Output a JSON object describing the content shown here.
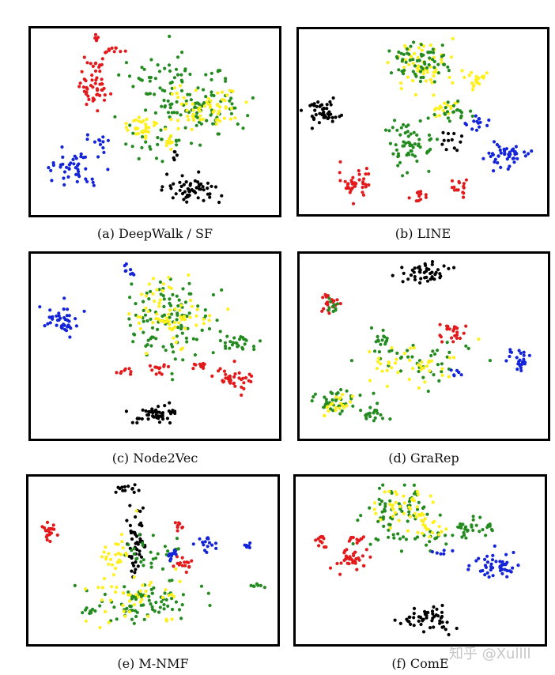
{
  "figure": {
    "type": "scatter-grid",
    "colors": {
      "black": "#000000",
      "red": "#e31a1c",
      "green": "#238b1f",
      "yellow": "#ffef1a",
      "blue": "#1424d8"
    }
  },
  "watermark": "知乎 @Xullll",
  "chart_data": [
    {
      "type": "scatter",
      "caption": "(a) DeepWalk / SF",
      "clusters": [
        {
          "color": "red",
          "cx": 0.25,
          "cy": 0.32,
          "rx": 0.07,
          "ry": 0.09,
          "n": 40
        },
        {
          "color": "red",
          "cx": 0.26,
          "cy": 0.2,
          "rx": 0.04,
          "ry": 0.03,
          "n": 12
        },
        {
          "color": "red",
          "cx": 0.33,
          "cy": 0.12,
          "rx": 0.04,
          "ry": 0.02,
          "n": 10
        },
        {
          "color": "red",
          "cx": 0.26,
          "cy": 0.05,
          "rx": 0.02,
          "ry": 0.02,
          "n": 5
        },
        {
          "color": "green",
          "cx": 0.7,
          "cy": 0.42,
          "rx": 0.18,
          "ry": 0.13,
          "n": 90
        },
        {
          "color": "green",
          "cx": 0.5,
          "cy": 0.25,
          "rx": 0.12,
          "ry": 0.12,
          "n": 40
        },
        {
          "color": "green",
          "cx": 0.5,
          "cy": 0.6,
          "rx": 0.15,
          "ry": 0.08,
          "n": 25
        },
        {
          "color": "yellow",
          "cx": 0.7,
          "cy": 0.42,
          "rx": 0.14,
          "ry": 0.1,
          "n": 60
        },
        {
          "color": "yellow",
          "cx": 0.46,
          "cy": 0.53,
          "rx": 0.08,
          "ry": 0.06,
          "n": 30
        },
        {
          "color": "yellow",
          "cx": 0.56,
          "cy": 0.62,
          "rx": 0.04,
          "ry": 0.04,
          "n": 10
        },
        {
          "color": "blue",
          "cx": 0.18,
          "cy": 0.75,
          "rx": 0.11,
          "ry": 0.08,
          "n": 45
        },
        {
          "color": "blue",
          "cx": 0.28,
          "cy": 0.6,
          "rx": 0.04,
          "ry": 0.04,
          "n": 10
        },
        {
          "color": "black",
          "cx": 0.65,
          "cy": 0.87,
          "rx": 0.1,
          "ry": 0.07,
          "n": 55
        },
        {
          "color": "black",
          "cx": 0.58,
          "cy": 0.68,
          "rx": 0.03,
          "ry": 0.02,
          "n": 5
        }
      ]
    },
    {
      "type": "scatter",
      "caption": "(b) LINE",
      "clusters": [
        {
          "color": "black",
          "cx": 0.1,
          "cy": 0.45,
          "rx": 0.07,
          "ry": 0.08,
          "n": 45
        },
        {
          "color": "yellow",
          "cx": 0.5,
          "cy": 0.18,
          "rx": 0.12,
          "ry": 0.12,
          "n": 60
        },
        {
          "color": "green",
          "cx": 0.5,
          "cy": 0.17,
          "rx": 0.1,
          "ry": 0.1,
          "n": 60
        },
        {
          "color": "yellow",
          "cx": 0.73,
          "cy": 0.28,
          "rx": 0.05,
          "ry": 0.05,
          "n": 20
        },
        {
          "color": "yellow",
          "cx": 0.58,
          "cy": 0.42,
          "rx": 0.05,
          "ry": 0.05,
          "n": 15
        },
        {
          "color": "green",
          "cx": 0.45,
          "cy": 0.63,
          "rx": 0.08,
          "ry": 0.13,
          "n": 60
        },
        {
          "color": "green",
          "cx": 0.62,
          "cy": 0.45,
          "rx": 0.06,
          "ry": 0.06,
          "n": 20
        },
        {
          "color": "blue",
          "cx": 0.72,
          "cy": 0.5,
          "rx": 0.04,
          "ry": 0.04,
          "n": 15
        },
        {
          "color": "blue",
          "cx": 0.84,
          "cy": 0.68,
          "rx": 0.08,
          "ry": 0.07,
          "n": 45
        },
        {
          "color": "red",
          "cx": 0.22,
          "cy": 0.82,
          "rx": 0.06,
          "ry": 0.07,
          "n": 40
        },
        {
          "color": "red",
          "cx": 0.65,
          "cy": 0.85,
          "rx": 0.03,
          "ry": 0.05,
          "n": 15
        },
        {
          "color": "red",
          "cx": 0.48,
          "cy": 0.9,
          "rx": 0.04,
          "ry": 0.03,
          "n": 12
        },
        {
          "color": "black",
          "cx": 0.6,
          "cy": 0.6,
          "rx": 0.05,
          "ry": 0.05,
          "n": 12
        }
      ]
    },
    {
      "type": "scatter",
      "caption": "(c) Node2Vec",
      "clusters": [
        {
          "color": "blue",
          "cx": 0.12,
          "cy": 0.35,
          "rx": 0.06,
          "ry": 0.07,
          "n": 40
        },
        {
          "color": "green",
          "cx": 0.55,
          "cy": 0.35,
          "rx": 0.15,
          "ry": 0.2,
          "n": 110
        },
        {
          "color": "yellow",
          "cx": 0.55,
          "cy": 0.33,
          "rx": 0.15,
          "ry": 0.18,
          "n": 70
        },
        {
          "color": "green",
          "cx": 0.83,
          "cy": 0.48,
          "rx": 0.08,
          "ry": 0.05,
          "n": 25
        },
        {
          "color": "red",
          "cx": 0.82,
          "cy": 0.67,
          "rx": 0.07,
          "ry": 0.07,
          "n": 35
        },
        {
          "color": "red",
          "cx": 0.68,
          "cy": 0.6,
          "rx": 0.04,
          "ry": 0.03,
          "n": 12
        },
        {
          "color": "red",
          "cx": 0.52,
          "cy": 0.62,
          "rx": 0.04,
          "ry": 0.03,
          "n": 12
        },
        {
          "color": "red",
          "cx": 0.38,
          "cy": 0.63,
          "rx": 0.03,
          "ry": 0.02,
          "n": 8
        },
        {
          "color": "black",
          "cx": 0.5,
          "cy": 0.87,
          "rx": 0.1,
          "ry": 0.06,
          "n": 50
        },
        {
          "color": "blue",
          "cx": 0.39,
          "cy": 0.1,
          "rx": 0.04,
          "ry": 0.04,
          "n": 8
        }
      ]
    },
    {
      "type": "scatter",
      "caption": "(d) GraRep",
      "clusters": [
        {
          "color": "black",
          "cx": 0.5,
          "cy": 0.1,
          "rx": 0.1,
          "ry": 0.05,
          "n": 45
        },
        {
          "color": "red",
          "cx": 0.12,
          "cy": 0.26,
          "rx": 0.04,
          "ry": 0.06,
          "n": 20
        },
        {
          "color": "green",
          "cx": 0.13,
          "cy": 0.28,
          "rx": 0.03,
          "ry": 0.05,
          "n": 10
        },
        {
          "color": "red",
          "cx": 0.62,
          "cy": 0.4,
          "rx": 0.05,
          "ry": 0.03,
          "n": 12
        },
        {
          "color": "red",
          "cx": 0.63,
          "cy": 0.44,
          "rx": 0.05,
          "ry": 0.05,
          "n": 10
        },
        {
          "color": "green",
          "cx": 0.33,
          "cy": 0.47,
          "rx": 0.04,
          "ry": 0.04,
          "n": 15
        },
        {
          "color": "green",
          "cx": 0.48,
          "cy": 0.58,
          "rx": 0.18,
          "ry": 0.12,
          "n": 40
        },
        {
          "color": "yellow",
          "cx": 0.45,
          "cy": 0.62,
          "rx": 0.2,
          "ry": 0.12,
          "n": 40
        },
        {
          "color": "green",
          "cx": 0.15,
          "cy": 0.8,
          "rx": 0.07,
          "ry": 0.06,
          "n": 35
        },
        {
          "color": "yellow",
          "cx": 0.15,
          "cy": 0.82,
          "rx": 0.07,
          "ry": 0.06,
          "n": 20
        },
        {
          "color": "green",
          "cx": 0.3,
          "cy": 0.87,
          "rx": 0.04,
          "ry": 0.05,
          "n": 20
        },
        {
          "color": "blue",
          "cx": 0.88,
          "cy": 0.58,
          "rx": 0.05,
          "ry": 0.05,
          "n": 25
        },
        {
          "color": "blue",
          "cx": 0.63,
          "cy": 0.65,
          "rx": 0.03,
          "ry": 0.03,
          "n": 6
        }
      ]
    },
    {
      "type": "scatter",
      "caption": "(e) M-NMF",
      "clusters": [
        {
          "color": "black",
          "cx": 0.43,
          "cy": 0.38,
          "rx": 0.03,
          "ry": 0.2,
          "n": 50
        },
        {
          "color": "black",
          "cx": 0.4,
          "cy": 0.08,
          "rx": 0.05,
          "ry": 0.03,
          "n": 12
        },
        {
          "color": "green",
          "cx": 0.48,
          "cy": 0.75,
          "rx": 0.2,
          "ry": 0.12,
          "n": 80
        },
        {
          "color": "yellow",
          "cx": 0.45,
          "cy": 0.72,
          "rx": 0.22,
          "ry": 0.13,
          "n": 45
        },
        {
          "color": "green",
          "cx": 0.5,
          "cy": 0.45,
          "rx": 0.1,
          "ry": 0.12,
          "n": 30
        },
        {
          "color": "yellow",
          "cx": 0.35,
          "cy": 0.45,
          "rx": 0.08,
          "ry": 0.1,
          "n": 25
        },
        {
          "color": "red",
          "cx": 0.08,
          "cy": 0.33,
          "rx": 0.03,
          "ry": 0.05,
          "n": 20
        },
        {
          "color": "red",
          "cx": 0.62,
          "cy": 0.52,
          "rx": 0.04,
          "ry": 0.04,
          "n": 15
        },
        {
          "color": "red",
          "cx": 0.6,
          "cy": 0.3,
          "rx": 0.02,
          "ry": 0.04,
          "n": 8
        },
        {
          "color": "blue",
          "cx": 0.71,
          "cy": 0.4,
          "rx": 0.05,
          "ry": 0.05,
          "n": 15
        },
        {
          "color": "blue",
          "cx": 0.88,
          "cy": 0.41,
          "rx": 0.02,
          "ry": 0.02,
          "n": 6
        },
        {
          "color": "blue",
          "cx": 0.57,
          "cy": 0.46,
          "rx": 0.03,
          "ry": 0.04,
          "n": 10
        },
        {
          "color": "green",
          "cx": 0.92,
          "cy": 0.65,
          "rx": 0.02,
          "ry": 0.02,
          "n": 8
        },
        {
          "color": "green",
          "cx": 0.24,
          "cy": 0.8,
          "rx": 0.03,
          "ry": 0.03,
          "n": 8
        }
      ]
    },
    {
      "type": "scatter",
      "caption": "(f) ComE",
      "clusters": [
        {
          "color": "green",
          "cx": 0.4,
          "cy": 0.2,
          "rx": 0.15,
          "ry": 0.12,
          "n": 60
        },
        {
          "color": "yellow",
          "cx": 0.43,
          "cy": 0.18,
          "rx": 0.12,
          "ry": 0.1,
          "n": 40
        },
        {
          "color": "green",
          "cx": 0.72,
          "cy": 0.3,
          "rx": 0.1,
          "ry": 0.06,
          "n": 30
        },
        {
          "color": "green",
          "cx": 0.5,
          "cy": 0.38,
          "rx": 0.15,
          "ry": 0.06,
          "n": 25
        },
        {
          "color": "yellow",
          "cx": 0.52,
          "cy": 0.32,
          "rx": 0.08,
          "ry": 0.06,
          "n": 20
        },
        {
          "color": "red",
          "cx": 0.22,
          "cy": 0.5,
          "rx": 0.06,
          "ry": 0.07,
          "n": 35
        },
        {
          "color": "red",
          "cx": 0.1,
          "cy": 0.38,
          "rx": 0.03,
          "ry": 0.04,
          "n": 12
        },
        {
          "color": "red",
          "cx": 0.24,
          "cy": 0.38,
          "rx": 0.04,
          "ry": 0.02,
          "n": 10
        },
        {
          "color": "blue",
          "cx": 0.81,
          "cy": 0.53,
          "rx": 0.1,
          "ry": 0.06,
          "n": 45
        },
        {
          "color": "blue",
          "cx": 0.59,
          "cy": 0.45,
          "rx": 0.03,
          "ry": 0.02,
          "n": 6
        },
        {
          "color": "black",
          "cx": 0.52,
          "cy": 0.85,
          "rx": 0.1,
          "ry": 0.06,
          "n": 50
        }
      ]
    }
  ]
}
